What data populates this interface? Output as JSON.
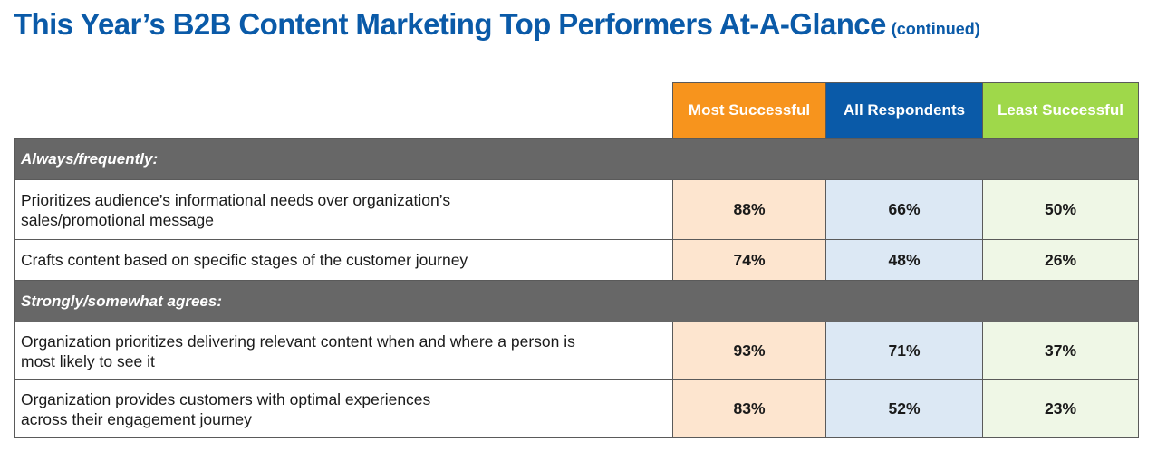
{
  "title": {
    "main": "This Year’s B2B Content Marketing Top Performers At-A-Glance",
    "suffix": "(continued)"
  },
  "colors": {
    "title": "#0a5aa8",
    "most_successful": "#f7941d",
    "all_respondents": "#0a5aa8",
    "least_successful": "#9fd84a",
    "section_band": "#676767"
  },
  "chart_data": {
    "type": "table",
    "columns": [
      "Most Successful",
      "All Respondents",
      "Least Successful"
    ],
    "sections": [
      {
        "label": "Always/frequently:",
        "rows": [
          {
            "label_lines": [
              "Prioritizes audience’s informational needs over organization’s",
              "sales/promotional message"
            ],
            "values": [
              "88%",
              "66%",
              "50%"
            ]
          },
          {
            "label_lines": [
              "Crafts content based on specific stages of the customer journey"
            ],
            "values": [
              "74%",
              "48%",
              "26%"
            ]
          }
        ]
      },
      {
        "label": "Strongly/somewhat agrees:",
        "rows": [
          {
            "label_lines": [
              "Organization prioritizes delivering relevant content when and where a person is",
              "most likely to see it"
            ],
            "values": [
              "93%",
              "71%",
              "37%"
            ]
          },
          {
            "label_lines": [
              "Organization provides customers with optimal experiences",
              "across their engagement journey"
            ],
            "values": [
              "83%",
              "52%",
              "23%"
            ]
          }
        ]
      }
    ]
  }
}
